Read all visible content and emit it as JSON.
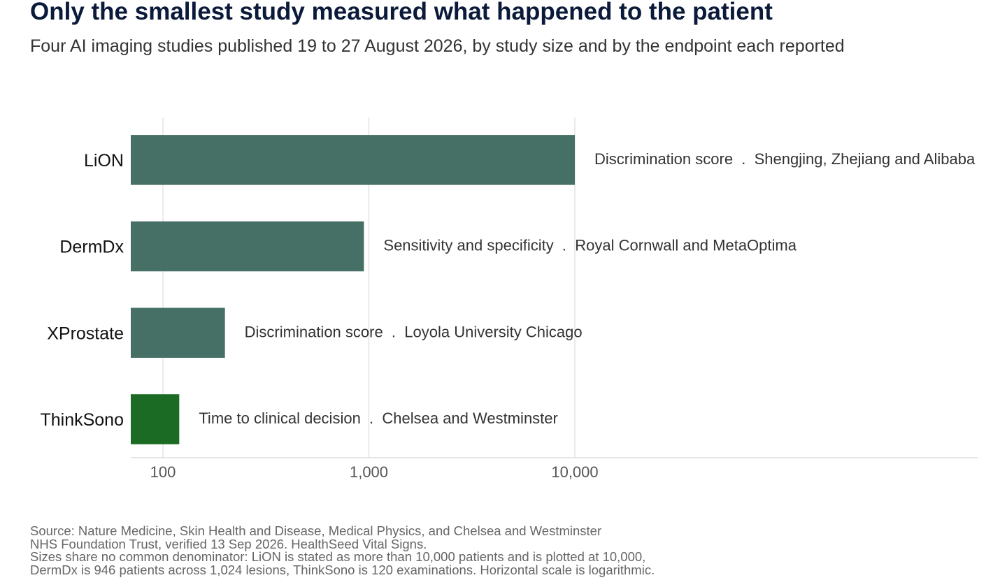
{
  "title": "Only the smallest study measured what happened to the patient",
  "subtitle": "Four AI imaging studies published 19 to 27 August 2026, by study size and by the endpoint each reported",
  "chart_data": {
    "type": "bar",
    "orientation": "horizontal",
    "xscale": "log",
    "xlim": [
      70,
      1000000
    ],
    "xticks": [
      100,
      1000,
      10000
    ],
    "xtick_labels": [
      "100",
      "1,000",
      "10,000"
    ],
    "grid": "vertical",
    "categories": [
      "LiON",
      "DermDx",
      "XProstate",
      "ThinkSono"
    ],
    "values": [
      10000,
      946,
      200,
      120
    ],
    "bar_labels": [
      "Discrimination score  .  Shengjing, Zhejiang and Alibaba",
      "Sensitivity and specificity  .  Royal Cornwall and MetaOptima",
      "Discrimination score  .  Loyola University Chicago",
      "Time to clinical decision  .  Chelsea and Westminster"
    ],
    "colors": [
      "#466f65",
      "#466f65",
      "#466f65",
      "#1b6b24"
    ],
    "highlight": "ThinkSono"
  },
  "footer": {
    "lines": [
      "Source: Nature Medicine, Skin Health and Disease, Medical Physics, and Chelsea and Westminster",
      "NHS Foundation Trust, verified 13 Sep 2026. HealthSeed Vital Signs.",
      "Sizes share no common denominator: LiON is stated as more than 10,000 patients and is plotted at 10,000,",
      "DermDx is 946 patients across 1,024 lesions, ThinkSono is 120 examinations. Horizontal scale is logarithmic."
    ]
  }
}
